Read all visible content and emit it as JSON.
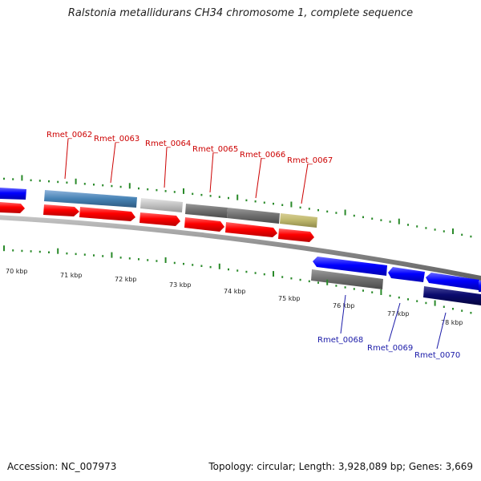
{
  "title": "Ralstonia metallidurans CH34 chromosome 1, complete sequence",
  "footer": {
    "accession": "Accession: NC_007973",
    "summary": "Topology: circular; Length: 3,928,089 bp; Genes: 3,669"
  },
  "colors": {
    "forward_label": "#cc0000",
    "reverse_label": "#1a1aa8",
    "backbone": "#7f7f7f",
    "tick": "#2a8a2a"
  },
  "kbp_labels": [
    "70 kbp",
    "71 kbp",
    "72 kbp",
    "73 kbp",
    "74 kbp",
    "75 kbp",
    "76 kbp",
    "77 kbp",
    "78 kbp"
  ],
  "forward_genes": [
    "Rmet_0062",
    "Rmet_0063",
    "Rmet_0064",
    "Rmet_0065",
    "Rmet_0066",
    "Rmet_0067"
  ],
  "reverse_genes": [
    "Rmet_0068",
    "Rmet_0069",
    "Rmet_0070"
  ]
}
